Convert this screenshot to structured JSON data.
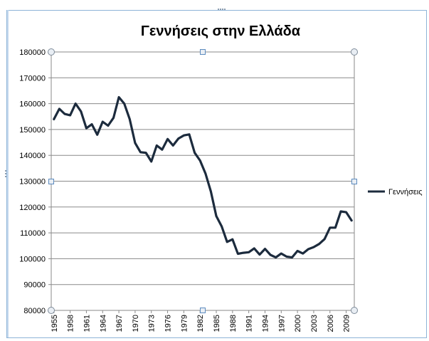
{
  "chart_data": {
    "type": "line",
    "title": "Γεννήσεις στην Ελλάδα",
    "xlabel": "",
    "ylabel": "",
    "ylim": [
      80000,
      180000
    ],
    "y_ticks": [
      80000,
      90000,
      100000,
      110000,
      120000,
      130000,
      140000,
      150000,
      160000,
      170000,
      180000
    ],
    "y_tick_labels": [
      "80000",
      "90000",
      "100000",
      "110000",
      "120000",
      "130000",
      "140000",
      "150000",
      "160000",
      "170000",
      "180000"
    ],
    "x_tick_labels": [
      "1955",
      "1958",
      "1961",
      "1964",
      "1967",
      "1970",
      "1973",
      "1976",
      "1979",
      "1982",
      "1985",
      "1988",
      "1991",
      "1994",
      "1997",
      "2000",
      "2003",
      "2006",
      "2009"
    ],
    "x": [
      1955,
      1956,
      1957,
      1958,
      1959,
      1960,
      1961,
      1962,
      1963,
      1964,
      1965,
      1966,
      1967,
      1968,
      1969,
      1970,
      1971,
      1972,
      1973,
      1974,
      1975,
      1976,
      1977,
      1978,
      1979,
      1980,
      1981,
      1982,
      1983,
      1984,
      1985,
      1986,
      1987,
      1988,
      1989,
      1990,
      1991,
      1992,
      1993,
      1994,
      1995,
      1996,
      1997,
      1998,
      1999,
      2000,
      2001,
      2002,
      2003,
      2004,
      2005,
      2006,
      2007,
      2008,
      2009,
      2010
    ],
    "series": [
      {
        "name": "Γεννήσεις",
        "color": "#1c2b3d",
        "values": [
          154000,
          158000,
          156000,
          155500,
          160000,
          157000,
          150500,
          152000,
          148000,
          153000,
          151500,
          154500,
          162500,
          160000,
          154000,
          144800,
          141200,
          141000,
          137600,
          143800,
          142200,
          146300,
          143800,
          146500,
          147700,
          148100,
          141000,
          138000,
          133000,
          126000,
          116500,
          112500,
          106500,
          107500,
          101900,
          102300,
          102500,
          104000,
          101600,
          103800,
          101500,
          100500,
          102000,
          100800,
          100500,
          103000,
          102000,
          103700,
          104500,
          105700,
          107600,
          112000,
          112000,
          118300,
          118000,
          114800
        ]
      }
    ],
    "legend_position": "right",
    "grid": true
  }
}
